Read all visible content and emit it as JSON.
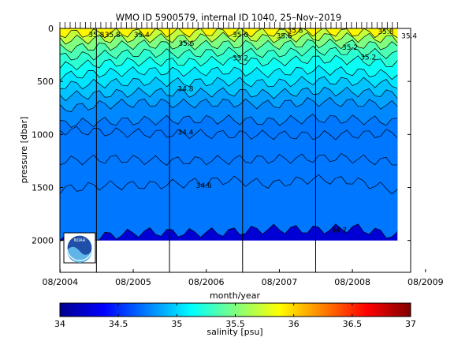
{
  "chart_data": {
    "type": "heatmap",
    "title": "WMO ID 5900579, internal ID 1040, 25–Nov–2019",
    "xlabel": "month/year",
    "ylabel": "pressure [dbar]",
    "colorbar_label": "salinity [psu]",
    "x_ticks": [
      "08/2004",
      "08/2005",
      "08/2006",
      "08/2007",
      "08/2008",
      "08/2009"
    ],
    "y_ticks": [
      0,
      500,
      1000,
      1500,
      2000
    ],
    "ylim": [
      2300,
      0
    ],
    "colorbar_ticks": [
      34,
      34.5,
      35,
      35.5,
      36,
      36.5,
      37
    ],
    "colorbar_range": [
      34,
      37
    ],
    "colormap": "jet",
    "contour_labels": [
      {
        "text": "35.8",
        "date": "2005.08",
        "pressure": 60
      },
      {
        "text": "35.8",
        "date": "2005.30",
        "pressure": 60
      },
      {
        "text": "35.8",
        "date": "2007.80",
        "pressure": 20
      },
      {
        "text": "35.8",
        "date": "2009.04",
        "pressure": 30
      },
      {
        "text": "35.4",
        "date": "2005.70",
        "pressure": 60
      },
      {
        "text": "35.4",
        "date": "2009.36",
        "pressure": 70
      },
      {
        "text": "35.6",
        "date": "2006.31",
        "pressure": 140
      },
      {
        "text": "35.6",
        "date": "2007.65",
        "pressure": 70
      },
      {
        "text": "35.2",
        "date": "2007.05",
        "pressure": 280
      },
      {
        "text": "35.2",
        "date": "2008.55",
        "pressure": 180
      },
      {
        "text": "35.2",
        "date": "2008.80",
        "pressure": 270
      },
      {
        "text": "35.0",
        "date": "2007.05",
        "pressure": 60
      },
      {
        "text": "34.8",
        "date": "2006.30",
        "pressure": 570
      },
      {
        "text": "34.4",
        "date": "2006.30",
        "pressure": 980
      },
      {
        "text": "34.6",
        "date": "2006.55",
        "pressure": 1480
      },
      {
        "text": "34.7",
        "date": "2008.40",
        "pressure": 1900
      }
    ],
    "contour_levels": [
      {
        "value": 34.4,
        "depth": [
          960,
          990,
          1000,
          1010,
          990
        ]
      },
      {
        "value": 34.5,
        "depth": [
          1250,
          1230,
          1250,
          1240,
          1230,
          1220,
          1260
        ]
      },
      {
        "value": 34.6,
        "depth": [
          1520,
          1480,
          1480,
          1460,
          1430,
          1470,
          1420,
          1440,
          1530
        ]
      },
      {
        "value": 34.7,
        "depth": [
          2000,
          1960,
          1920,
          1930,
          1920,
          1890,
          1900,
          1880,
          1960
        ]
      },
      {
        "value": 34.75,
        "depth": [
          900,
          880,
          870,
          860,
          860,
          880,
          850,
          860,
          880
        ]
      },
      {
        "value": 34.8,
        "depth": [
          760,
          720,
          700,
          710,
          700,
          720,
          690,
          700,
          730
        ]
      },
      {
        "value": 34.9,
        "depth": [
          640,
          620,
          600,
          610,
          600,
          620,
          590,
          600,
          620
        ]
      },
      {
        "value": 35.0,
        "depth": [
          540,
          520,
          500,
          510,
          500,
          520,
          490,
          500,
          530
        ]
      },
      {
        "value": 35.1,
        "depth": [
          450,
          420,
          400,
          410,
          400,
          420,
          390,
          410,
          440
        ]
      },
      {
        "value": 35.2,
        "depth": [
          360,
          330,
          310,
          320,
          300,
          320,
          290,
          300,
          340
        ]
      },
      {
        "value": 35.3,
        "depth": [
          270,
          250,
          230,
          240,
          220,
          240,
          210,
          220,
          250
        ]
      },
      {
        "value": 35.4,
        "depth": [
          190,
          170,
          150,
          160,
          150,
          160,
          140,
          150,
          170
        ]
      },
      {
        "value": 35.6,
        "depth": [
          110,
          100,
          90,
          95,
          80,
          95,
          80,
          85,
          100
        ]
      },
      {
        "value": 35.8,
        "depth": [
          50,
          45,
          40,
          40,
          35,
          40,
          30,
          40,
          45
        ]
      }
    ],
    "profile_dates": [
      2004.55,
      2004.75,
      2005.0,
      2005.5,
      2006.0,
      2006.5,
      2007.0,
      2007.5,
      2008.0,
      2008.5,
      2009.0,
      2009.1,
      2009.18
    ],
    "data_bottom_pressure": 2000,
    "vertical_markers": [
      "2005.08",
      "2006.08",
      "2007.08",
      "2008.08"
    ],
    "logo": "noaa-logo"
  }
}
